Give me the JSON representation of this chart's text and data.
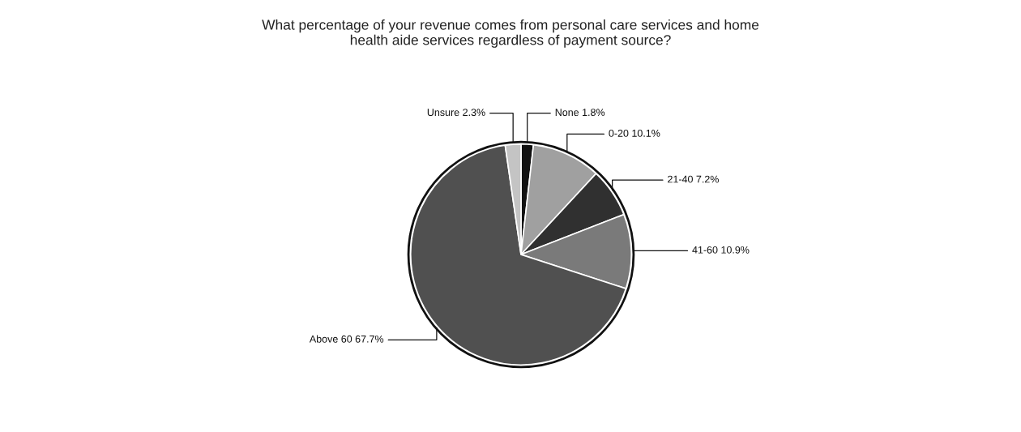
{
  "chart_data": {
    "type": "pie",
    "title": "What percentage of your revenue comes from personal care services and home\nhealth aide services regardless of payment source?",
    "categories": [
      "None",
      "0-20",
      "21-40",
      "41-60",
      "Above 60",
      "Unsure"
    ],
    "values": [
      1.8,
      10.1,
      7.2,
      10.9,
      67.7,
      2.3
    ],
    "colors": [
      "#111111",
      "#a0a0a0",
      "#303030",
      "#7a7a7a",
      "#505050",
      "#c4c4c4"
    ],
    "value_labels": [
      "1.8%",
      "10.1%",
      "7.2%",
      "10.9%",
      "67.7%",
      "2.3%"
    ],
    "legend": false
  }
}
